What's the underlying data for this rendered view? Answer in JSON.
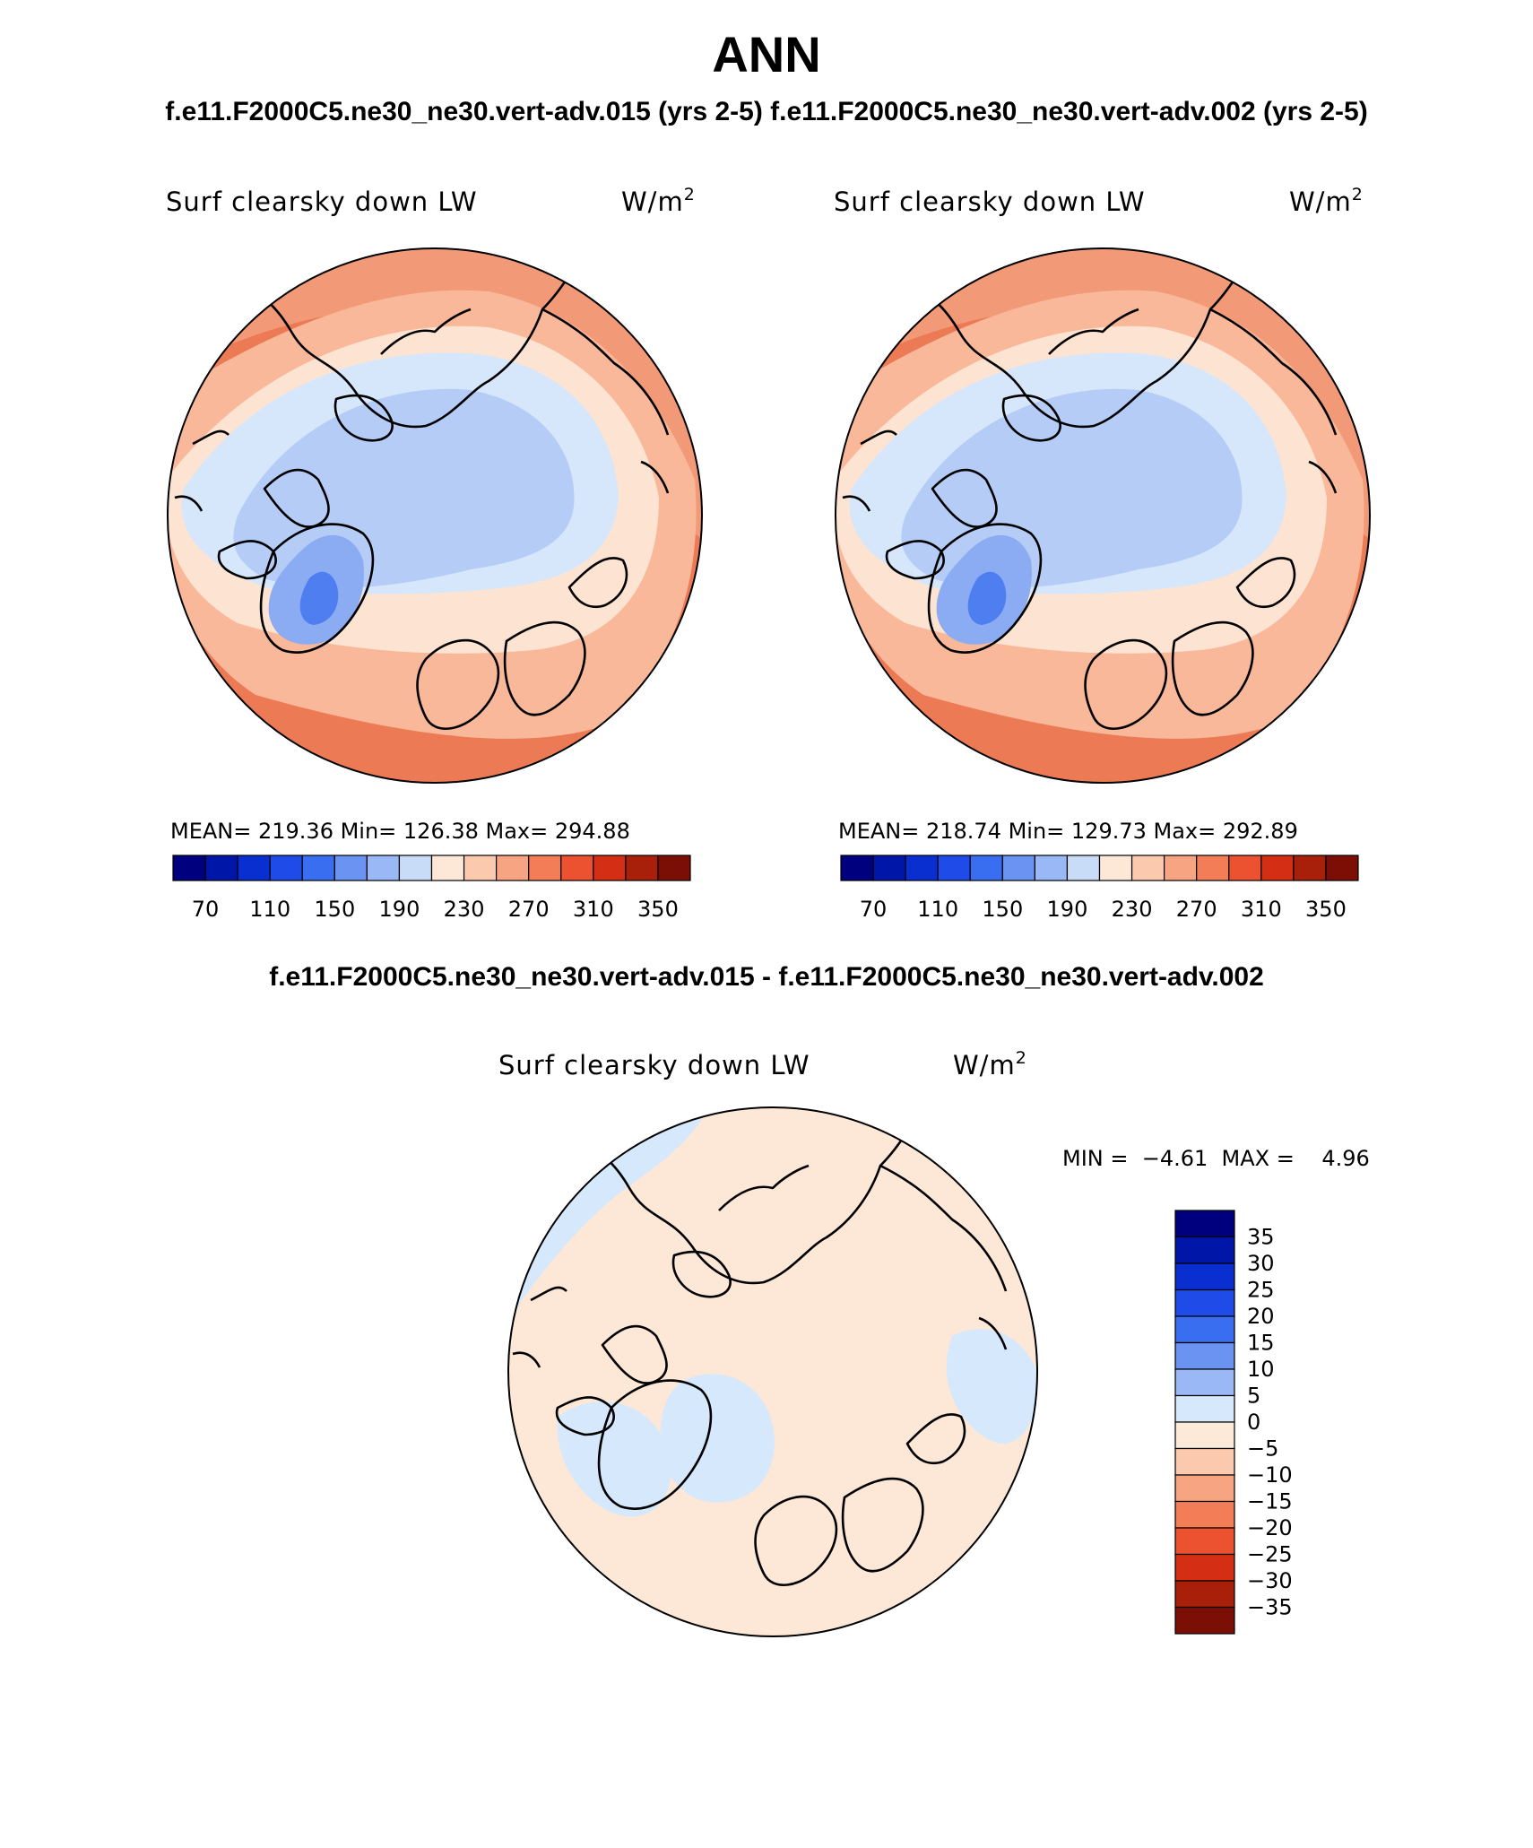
{
  "figure": {
    "title": "ANN",
    "case_a_title": "f.e11.F2000C5.ne30_ne30.vert-adv.015 (yrs 2-5)",
    "case_b_title": "f.e11.F2000C5.ne30_ne30.vert-adv.002 (yrs 2-5)",
    "diff_title": "f.e11.F2000C5.ne30_ne30.vert-adv.015 - f.e11.F2000C5.ne30_ne30.vert-adv.002"
  },
  "panels": {
    "left": {
      "variable": "Surf clearsky down LW",
      "units_base": "W/m",
      "units_exp": "2",
      "stats": "MEAN= 219.36   Min= 126.38   Max= 294.88"
    },
    "right": {
      "variable": "Surf clearsky down LW",
      "units_base": "W/m",
      "units_exp": "2",
      "stats": "MEAN= 218.74   Min= 129.73   Max= 292.89"
    },
    "diff": {
      "variable": "Surf clearsky down LW",
      "units_base": "W/m",
      "units_exp": "2",
      "minmax": "MIN =  −4.61  MAX =    4.96"
    }
  },
  "colorbars": {
    "absolute": {
      "colors": [
        "#00007f",
        "#0016a8",
        "#0a2fd0",
        "#1f4be8",
        "#3a6ef0",
        "#6a93f2",
        "#9ab8f5",
        "#c8dcf8",
        "#fde7d6",
        "#fbcaae",
        "#f6a482",
        "#f27d56",
        "#ec5130",
        "#d42f15",
        "#a8200a",
        "#7c0f05"
      ],
      "tick_labels": [
        "70",
        "110",
        "150",
        "190",
        "230",
        "270",
        "310",
        "350"
      ]
    },
    "difference": {
      "colors": [
        "#00007f",
        "#0016a8",
        "#0a2fd0",
        "#1f4be8",
        "#3a6ef0",
        "#6a93f2",
        "#9ab8f5",
        "#d6e8fb",
        "#fde9d8",
        "#fbcaae",
        "#f6a482",
        "#f27d56",
        "#ec5130",
        "#d42f15",
        "#a8200a",
        "#7c0f05"
      ],
      "tick_labels": [
        "35",
        "30",
        "25",
        "20",
        "15",
        "10",
        "5",
        "0",
        "−5",
        "−10",
        "−15",
        "−20",
        "−25",
        "−30",
        "−35"
      ]
    }
  },
  "chart_data": [
    {
      "type": "heatmap",
      "projection": "north polar stereographic",
      "variable": "Surf clearsky down LW",
      "units": "W/m2",
      "mean": 219.36,
      "min": 126.38,
      "max": 294.88,
      "contour_levels": [
        70,
        90,
        110,
        130,
        150,
        170,
        190,
        210,
        230,
        250,
        270,
        290,
        310,
        330,
        350
      ]
    },
    {
      "type": "heatmap",
      "projection": "north polar stereographic",
      "variable": "Surf clearsky down LW",
      "units": "W/m2",
      "mean": 218.74,
      "min": 129.73,
      "max": 292.89,
      "contour_levels": [
        70,
        90,
        110,
        130,
        150,
        170,
        190,
        210,
        230,
        250,
        270,
        290,
        310,
        330,
        350
      ]
    },
    {
      "type": "heatmap",
      "projection": "north polar stereographic",
      "variable": "Surf clearsky down LW",
      "units": "W/m2",
      "min": -4.61,
      "max": 4.96,
      "contour_levels": [
        -35,
        -30,
        -25,
        -20,
        -15,
        -10,
        -5,
        0,
        5,
        10,
        15,
        20,
        25,
        30,
        35
      ]
    }
  ]
}
